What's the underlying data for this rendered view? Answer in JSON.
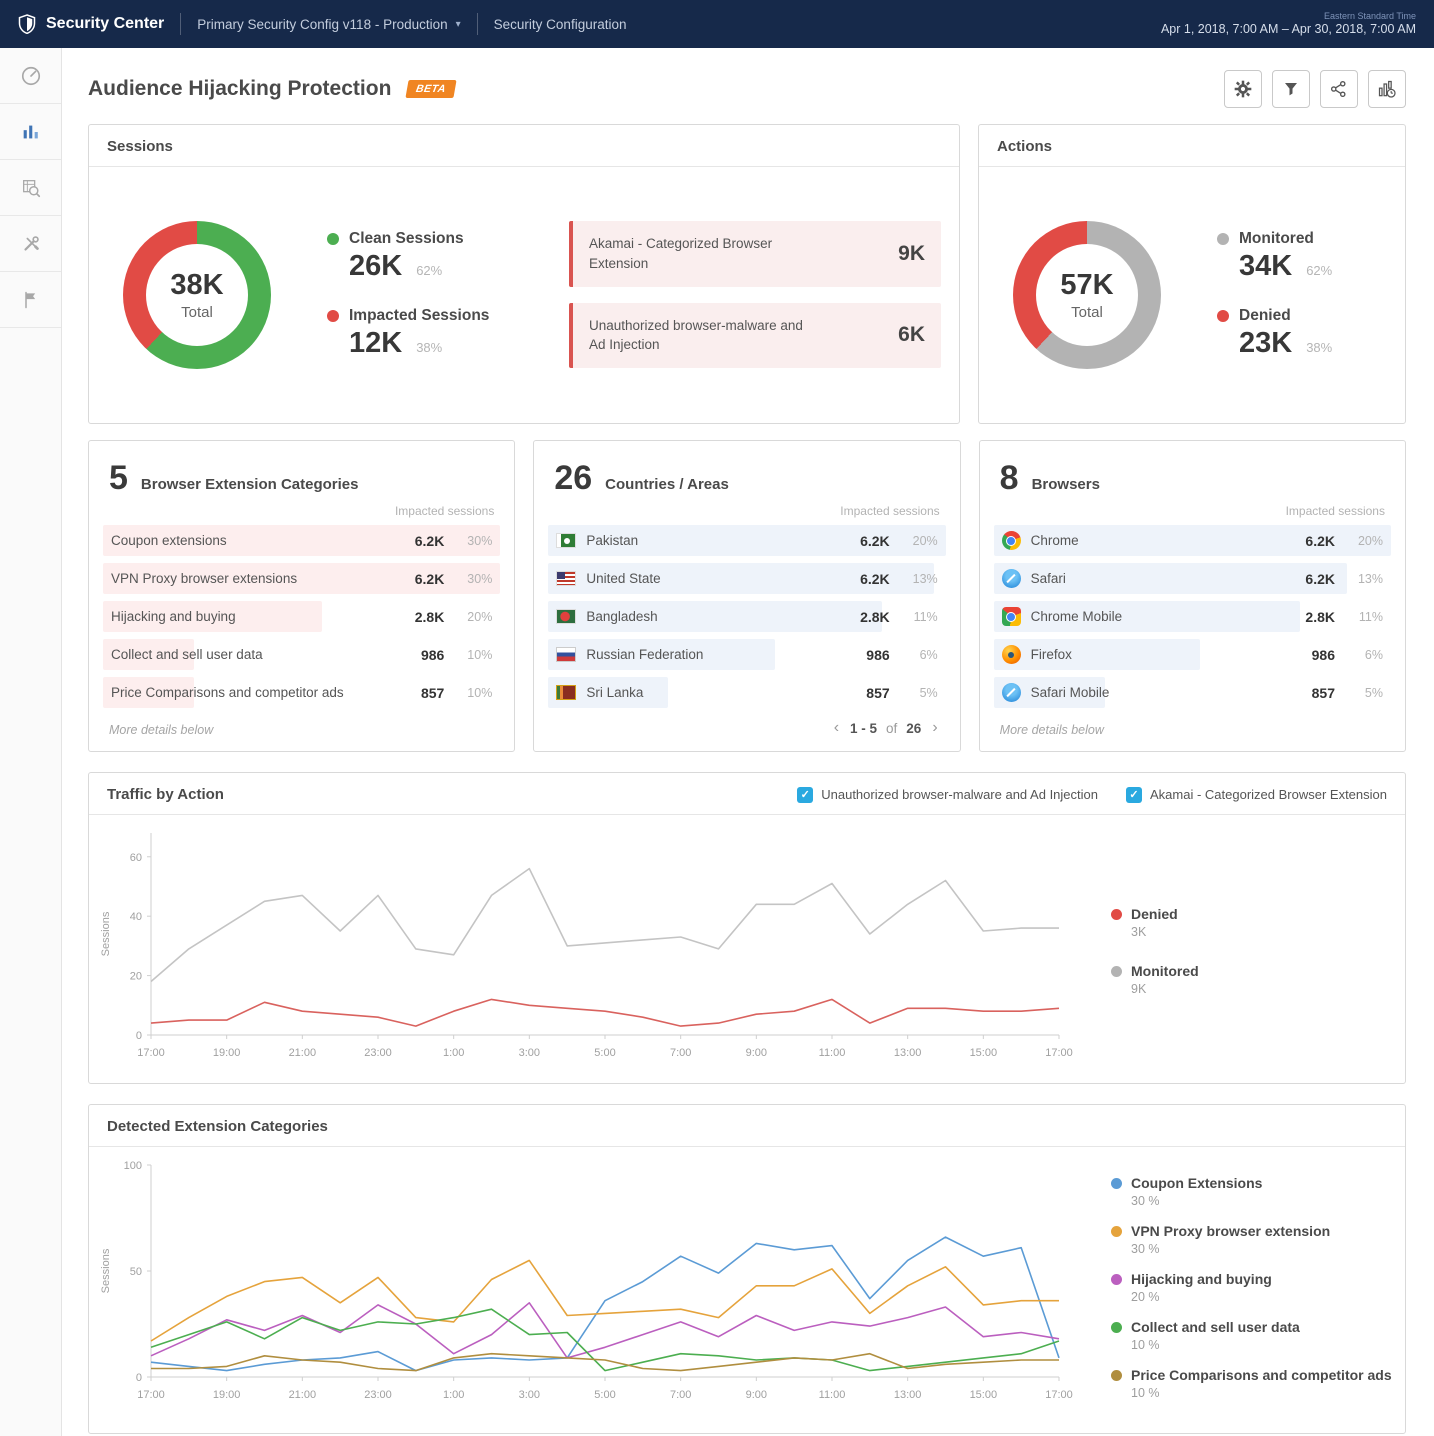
{
  "topbar": {
    "brand": "Security Center",
    "config_selector": "Primary Security Config v118 - Production",
    "nav_item": "Security Configuration",
    "timezone": "Eastern Standard Time",
    "date_range": "Apr 1, 2018,  7:00 AM  –  Apr 30, 2018,  7:00 AM"
  },
  "sidebar": {
    "items": [
      "dashboard-gauge",
      "analytics-bars",
      "data-explorer",
      "tools",
      "flag"
    ]
  },
  "page": {
    "title": "Audience Hijacking Protection",
    "beta_badge": "BETA"
  },
  "toolbar_icons": [
    "settings",
    "filter",
    "share",
    "report"
  ],
  "colors": {
    "accent_blue": "#2aa9e0",
    "danger_red": "#e14b45",
    "success_green": "#4cae51",
    "neutral_gray": "#b0b0b0",
    "navbar_navy": "#16294a",
    "beta_orange": "#f08522"
  },
  "sessions_panel": {
    "title": "Sessions",
    "donut": {
      "total": "38K",
      "total_label": "Total",
      "segments": [
        {
          "label": "Clean",
          "pct": 62,
          "color": "#4cae51"
        },
        {
          "label": "Impacted",
          "pct": 38,
          "color": "#e14b45"
        }
      ]
    },
    "legend": [
      {
        "label": "Clean Sessions",
        "value": "26K",
        "pct": "62%",
        "color": "#4cae51"
      },
      {
        "label": "Impacted Sessions",
        "value": "12K",
        "pct": "38%",
        "color": "#e14b45"
      }
    ],
    "callouts": [
      {
        "label": "Akamai - Categorized Browser Extension",
        "value": "9K"
      },
      {
        "label": "Unauthorized browser-malware and Ad Injection",
        "value": "6K"
      }
    ]
  },
  "actions_panel": {
    "title": "Actions",
    "donut": {
      "total": "57K",
      "total_label": "Total",
      "segments": [
        {
          "label": "Monitored",
          "pct": 62,
          "color": "#b3b3b3"
        },
        {
          "label": "Denied",
          "pct": 38,
          "color": "#e14b45"
        }
      ]
    },
    "legend": [
      {
        "label": "Monitored",
        "value": "34K",
        "pct": "62%",
        "color": "#b3b3b3"
      },
      {
        "label": "Denied",
        "value": "23K",
        "pct": "38%",
        "color": "#e14b45"
      }
    ]
  },
  "categories_panel": {
    "count": "5",
    "title": "Browser Extension Categories",
    "column_header": "Impacted sessions",
    "row_bg": "#fdeeee",
    "rows": [
      {
        "label": "Coupon extensions",
        "value": "6.2K",
        "pct": "30%",
        "bar": 100
      },
      {
        "label": "VPN Proxy browser extensions",
        "value": "6.2K",
        "pct": "30%",
        "bar": 100
      },
      {
        "label": "Hijacking and buying",
        "value": "2.8K",
        "pct": "20%",
        "bar": 55
      },
      {
        "label": "Collect and sell user data",
        "value": "986",
        "pct": "10%",
        "bar": 23
      },
      {
        "label": "Price Comparisons and competitor ads",
        "value": "857",
        "pct": "10%",
        "bar": 23
      }
    ],
    "footer": "More details below"
  },
  "countries_panel": {
    "count": "26",
    "title": "Countries / Areas",
    "column_header": "Impacted sessions",
    "row_bg": "#eef3fa",
    "rows": [
      {
        "label": "Pakistan",
        "icon": "flag-pakistan",
        "value": "6.2K",
        "pct": "20%",
        "bar": 100
      },
      {
        "label": "United State",
        "icon": "flag-us",
        "value": "6.2K",
        "pct": "13%",
        "bar": 97
      },
      {
        "label": "Bangladesh",
        "icon": "flag-bangladesh",
        "value": "2.8K",
        "pct": "11%",
        "bar": 84
      },
      {
        "label": "Russian Federation",
        "icon": "flag-russia",
        "value": "986",
        "pct": "6%",
        "bar": 57
      },
      {
        "label": "Sri Lanka",
        "icon": "flag-srilanka",
        "value": "857",
        "pct": "5%",
        "bar": 30
      }
    ],
    "pagination": {
      "prev": "‹",
      "range": "1 - 5",
      "of_label": "of",
      "total": "26",
      "next": "›"
    }
  },
  "browsers_panel": {
    "count": "8",
    "title": "Browsers",
    "column_header": "Impacted sessions",
    "row_bg": "#eef3fa",
    "rows": [
      {
        "label": "Chrome",
        "icon": "browser-chrome",
        "value": "6.2K",
        "pct": "20%",
        "bar": 100
      },
      {
        "label": "Safari",
        "icon": "browser-safari",
        "value": "6.2K",
        "pct": "13%",
        "bar": 89
      },
      {
        "label": "Chrome Mobile",
        "icon": "browser-chrome-mobile",
        "value": "2.8K",
        "pct": "11%",
        "bar": 77
      },
      {
        "label": "Firefox",
        "icon": "browser-firefox",
        "value": "986",
        "pct": "6%",
        "bar": 52
      },
      {
        "label": "Safari Mobile",
        "icon": "browser-safari-mobile",
        "value": "857",
        "pct": "5%",
        "bar": 28
      }
    ],
    "footer": "More details below"
  },
  "traffic_panel": {
    "title": "Traffic by Action",
    "checkboxes": [
      {
        "label": "Unauthorized browser-malware and Ad Injection",
        "checked": true
      },
      {
        "label": "Akamai - Categorized Browser Extension",
        "checked": true
      }
    ],
    "legend": [
      {
        "label": "Denied",
        "sublabel": "3K",
        "color": "#e14b45"
      },
      {
        "label": "Monitored",
        "sublabel": "9K",
        "color": "#b3b3b3"
      }
    ]
  },
  "detected_panel": {
    "title": "Detected Extension Categories",
    "legend": [
      {
        "label": "Coupon Extensions",
        "sublabel": "30 %",
        "color": "#5b9bd5"
      },
      {
        "label": "VPN Proxy browser extension",
        "sublabel": "30 %",
        "color": "#e5a33c"
      },
      {
        "label": "Hijacking and buying",
        "sublabel": "20 %",
        "color": "#bb5fbf"
      },
      {
        "label": "Collect and sell user data",
        "sublabel": "10 %",
        "color": "#4cae50"
      },
      {
        "label": "Price Comparisons and competitor ads",
        "sublabel": "10 %",
        "color": "#b08e3f"
      }
    ]
  },
  "chart_data": [
    {
      "id": "traffic_by_action",
      "type": "line",
      "title": "Traffic by Action",
      "xlabel": "",
      "ylabel": "Sessions",
      "ylim": [
        0,
        68
      ],
      "yticks": [
        0,
        20,
        40,
        60
      ],
      "grid": false,
      "legend_position": "right",
      "x_tick_labels": [
        "17:00",
        "19:00",
        "21:00",
        "23:00",
        "1:00",
        "3:00",
        "5:00",
        "7:00",
        "9:00",
        "11:00",
        "13:00",
        "15:00",
        "17:00"
      ],
      "series": [
        {
          "name": "Monitored",
          "color": "#c4c4c4",
          "values": [
            18,
            29,
            37,
            45,
            47,
            35,
            47,
            29,
            27,
            47,
            56,
            30,
            31,
            32,
            33,
            29,
            44,
            44,
            51,
            34,
            44,
            52,
            35,
            36,
            36
          ]
        },
        {
          "name": "Denied",
          "color": "#d9625e",
          "values": [
            4,
            5,
            5,
            11,
            8,
            7,
            6,
            3,
            8,
            12,
            10,
            9,
            8,
            6,
            3,
            4,
            7,
            8,
            12,
            4,
            9,
            9,
            8,
            8,
            9
          ]
        }
      ]
    },
    {
      "id": "detected_extension_categories",
      "type": "line",
      "title": "Detected Extension Categories",
      "xlabel": "",
      "ylabel": "Sessions",
      "ylim": [
        0,
        100
      ],
      "yticks": [
        0,
        50,
        100
      ],
      "grid": false,
      "legend_position": "right",
      "x_tick_labels": [
        "17:00",
        "19:00",
        "21:00",
        "23:00",
        "1:00",
        "3:00",
        "5:00",
        "7:00",
        "9:00",
        "11:00",
        "13:00",
        "15:00",
        "17:00"
      ],
      "series": [
        {
          "name": "Coupon Extensions",
          "color": "#5b9bd5",
          "values": [
            7,
            5,
            3,
            6,
            8,
            9,
            12,
            3,
            8,
            9,
            8,
            9,
            36,
            45,
            57,
            49,
            63,
            60,
            62,
            37,
            55,
            66,
            57,
            61,
            9
          ]
        },
        {
          "name": "VPN Proxy browser extension",
          "color": "#e5a33c",
          "values": [
            17,
            28,
            38,
            45,
            47,
            35,
            47,
            28,
            26,
            46,
            55,
            29,
            30,
            31,
            32,
            28,
            43,
            43,
            51,
            30,
            43,
            52,
            34,
            36,
            36
          ]
        },
        {
          "name": "Hijacking and buying",
          "color": "#bb5fbf",
          "values": [
            10,
            18,
            27,
            22,
            29,
            21,
            34,
            25,
            11,
            20,
            35,
            9,
            14,
            20,
            26,
            19,
            29,
            22,
            26,
            24,
            28,
            33,
            19,
            21,
            18
          ]
        },
        {
          "name": "Collect and sell user data",
          "color": "#4cae50",
          "values": [
            14,
            20,
            26,
            18,
            28,
            22,
            26,
            25,
            28,
            32,
            20,
            21,
            3,
            7,
            11,
            10,
            8,
            9,
            8,
            3,
            5,
            7,
            9,
            11,
            17
          ]
        },
        {
          "name": "Price Comparisons and competitor ads",
          "color": "#b08e3f",
          "values": [
            4,
            4,
            5,
            10,
            8,
            7,
            4,
            3,
            9,
            11,
            10,
            9,
            8,
            4,
            3,
            5,
            7,
            9,
            8,
            11,
            4,
            6,
            7,
            8,
            8
          ]
        }
      ]
    }
  ]
}
